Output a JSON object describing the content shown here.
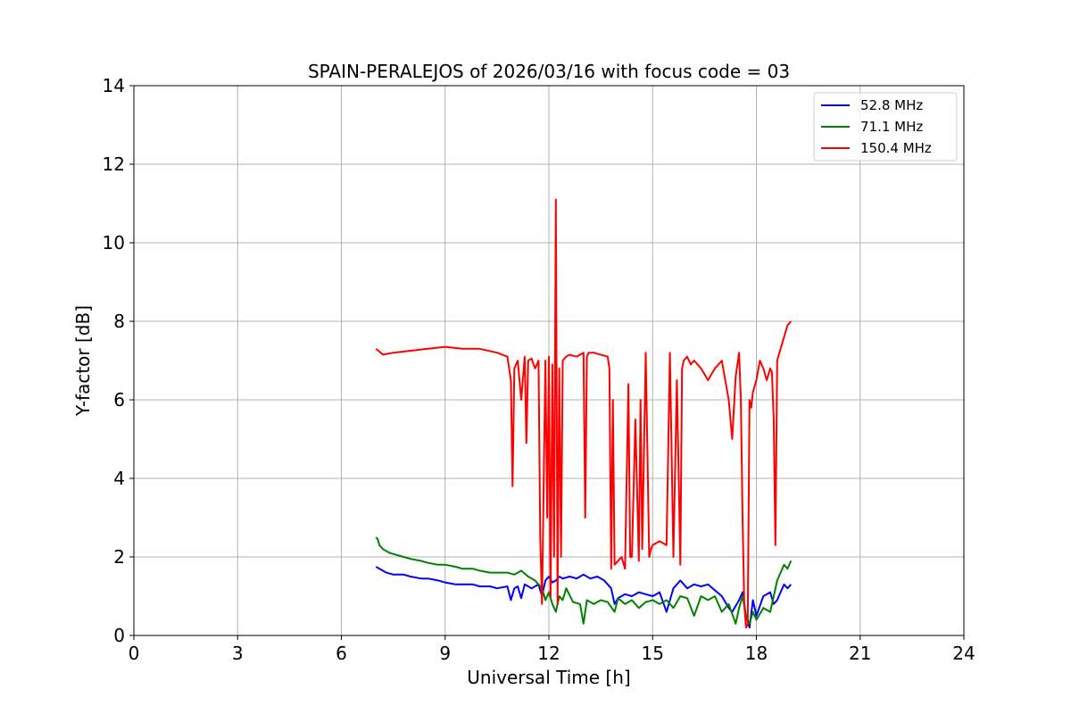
{
  "chart_data": {
    "type": "line",
    "title": "SPAIN-PERALEJOS of 2026/03/16 with focus code = 03",
    "xlabel": "Universal Time [h]",
    "ylabel": "Y-factor [dB]",
    "xlim": [
      0,
      24
    ],
    "ylim": [
      0,
      14
    ],
    "xticks": [
      0,
      3,
      6,
      9,
      12,
      15,
      18,
      21,
      24
    ],
    "yticks": [
      0,
      2,
      4,
      6,
      8,
      10,
      12,
      14
    ],
    "grid": true,
    "legend_position": "top-right",
    "series": [
      {
        "name": "  52.8 MHz",
        "color": "#0000ff",
        "x": [
          7.0,
          7.1,
          7.3,
          7.5,
          7.8,
          8.0,
          8.3,
          8.5,
          8.8,
          9.0,
          9.3,
          9.5,
          9.8,
          10.0,
          10.3,
          10.5,
          10.8,
          10.9,
          11.0,
          11.1,
          11.2,
          11.3,
          11.5,
          11.7,
          11.8,
          11.9,
          12.0,
          12.1,
          12.2,
          12.3,
          12.4,
          12.6,
          12.8,
          13.0,
          13.2,
          13.4,
          13.6,
          13.8,
          13.9,
          14.0,
          14.2,
          14.4,
          14.6,
          14.8,
          15.0,
          15.2,
          15.4,
          15.6,
          15.8,
          16.0,
          16.2,
          16.4,
          16.6,
          16.8,
          17.0,
          17.2,
          17.3,
          17.5,
          17.6,
          17.7,
          17.8,
          17.9,
          18.0,
          18.2,
          18.4,
          18.5,
          18.6,
          18.7,
          18.8,
          18.9,
          19.0
        ],
        "y": [
          1.75,
          1.7,
          1.6,
          1.55,
          1.55,
          1.5,
          1.45,
          1.45,
          1.4,
          1.35,
          1.3,
          1.3,
          1.3,
          1.25,
          1.25,
          1.2,
          1.25,
          0.9,
          1.2,
          1.25,
          0.95,
          1.3,
          1.2,
          1.3,
          1.0,
          1.4,
          1.5,
          1.35,
          1.4,
          1.5,
          1.45,
          1.5,
          1.45,
          1.55,
          1.45,
          1.5,
          1.4,
          1.2,
          0.8,
          0.95,
          1.05,
          1.0,
          1.1,
          1.05,
          1.0,
          1.1,
          0.6,
          1.2,
          1.4,
          1.2,
          1.3,
          1.25,
          1.3,
          1.15,
          1.0,
          0.7,
          0.6,
          0.9,
          1.1,
          0.5,
          0.2,
          0.9,
          0.5,
          1.0,
          1.1,
          0.8,
          0.9,
          1.1,
          1.3,
          1.2,
          1.3
        ]
      },
      {
        "name": "  71.1 MHz",
        "color": "#008000",
        "x": [
          7.0,
          7.05,
          7.1,
          7.2,
          7.4,
          7.6,
          7.8,
          8.0,
          8.3,
          8.5,
          8.8,
          9.0,
          9.3,
          9.5,
          9.8,
          10.0,
          10.3,
          10.5,
          10.8,
          11.0,
          11.2,
          11.4,
          11.6,
          11.8,
          11.9,
          12.0,
          12.1,
          12.2,
          12.3,
          12.4,
          12.5,
          12.7,
          12.9,
          13.0,
          13.1,
          13.3,
          13.5,
          13.7,
          13.9,
          14.0,
          14.2,
          14.4,
          14.6,
          14.8,
          15.0,
          15.2,
          15.4,
          15.6,
          15.8,
          16.0,
          16.2,
          16.4,
          16.6,
          16.8,
          17.0,
          17.2,
          17.4,
          17.5,
          17.6,
          17.7,
          17.8,
          17.9,
          18.0,
          18.2,
          18.4,
          18.5,
          18.6,
          18.7,
          18.8,
          18.9,
          19.0
        ],
        "y": [
          2.5,
          2.45,
          2.3,
          2.2,
          2.1,
          2.05,
          2.0,
          1.95,
          1.9,
          1.85,
          1.8,
          1.8,
          1.75,
          1.7,
          1.7,
          1.65,
          1.6,
          1.6,
          1.6,
          1.55,
          1.65,
          1.5,
          1.4,
          1.2,
          0.9,
          1.1,
          0.8,
          0.6,
          1.0,
          0.9,
          1.2,
          0.85,
          0.8,
          0.3,
          0.9,
          0.8,
          0.9,
          0.85,
          0.6,
          0.95,
          0.8,
          0.9,
          0.7,
          0.85,
          0.9,
          0.8,
          0.9,
          0.7,
          1.0,
          0.95,
          0.5,
          1.0,
          0.9,
          1.0,
          0.6,
          0.8,
          0.3,
          0.7,
          1.0,
          0.5,
          0.3,
          0.6,
          0.4,
          0.7,
          0.6,
          1.0,
          1.4,
          1.6,
          1.8,
          1.7,
          1.9
        ]
      },
      {
        "name": "  150.4 MHz",
        "color": "#ff0000",
        "x": [
          7.0,
          7.2,
          7.5,
          8.0,
          8.5,
          9.0,
          9.5,
          10.0,
          10.5,
          10.8,
          10.9,
          10.95,
          11.0,
          11.1,
          11.2,
          11.3,
          11.35,
          11.4,
          11.5,
          11.6,
          11.7,
          11.75,
          11.8,
          11.9,
          11.95,
          12.0,
          12.05,
          12.1,
          12.15,
          12.2,
          12.25,
          12.3,
          12.35,
          12.4,
          12.5,
          12.6,
          12.8,
          13.0,
          13.05,
          13.1,
          13.15,
          13.3,
          13.5,
          13.7,
          13.75,
          13.8,
          13.85,
          13.9,
          14.0,
          14.1,
          14.2,
          14.3,
          14.35,
          14.4,
          14.5,
          14.6,
          14.65,
          14.7,
          14.8,
          14.9,
          14.95,
          15.0,
          15.2,
          15.4,
          15.5,
          15.6,
          15.7,
          15.8,
          15.85,
          15.9,
          16.0,
          16.1,
          16.2,
          16.4,
          16.6,
          16.8,
          17.0,
          17.1,
          17.2,
          17.3,
          17.4,
          17.5,
          17.55,
          17.6,
          17.65,
          17.7,
          17.75,
          17.8,
          17.85,
          17.9,
          18.0,
          18.1,
          18.2,
          18.3,
          18.4,
          18.45,
          18.5,
          18.55,
          18.6,
          18.7,
          18.8,
          18.9,
          19.0
        ],
        "y": [
          7.3,
          7.15,
          7.2,
          7.25,
          7.3,
          7.35,
          7.3,
          7.3,
          7.2,
          7.1,
          6.5,
          3.8,
          6.8,
          7.0,
          6.0,
          7.1,
          4.9,
          7.0,
          7.05,
          6.8,
          7.0,
          2.5,
          0.8,
          7.0,
          3.0,
          7.1,
          1.0,
          6.9,
          2.0,
          11.1,
          0.8,
          6.8,
          2.0,
          7.0,
          7.1,
          7.15,
          7.1,
          7.2,
          3.0,
          7.1,
          7.2,
          7.2,
          7.15,
          7.1,
          6.8,
          1.7,
          6.0,
          1.8,
          1.9,
          2.0,
          1.7,
          6.4,
          2.0,
          2.0,
          5.5,
          1.9,
          6.0,
          2.2,
          7.2,
          2.0,
          2.2,
          2.3,
          2.4,
          2.3,
          7.2,
          2.0,
          6.5,
          1.8,
          6.8,
          7.0,
          7.1,
          6.9,
          7.0,
          6.8,
          6.5,
          6.8,
          7.0,
          6.5,
          6.0,
          5.0,
          6.6,
          7.2,
          6.0,
          3.0,
          0.8,
          0.2,
          0.3,
          6.0,
          5.8,
          6.2,
          6.5,
          7.0,
          6.8,
          6.5,
          6.8,
          6.7,
          5.5,
          2.3,
          7.0,
          7.3,
          7.6,
          7.9,
          8.0
        ]
      }
    ]
  }
}
